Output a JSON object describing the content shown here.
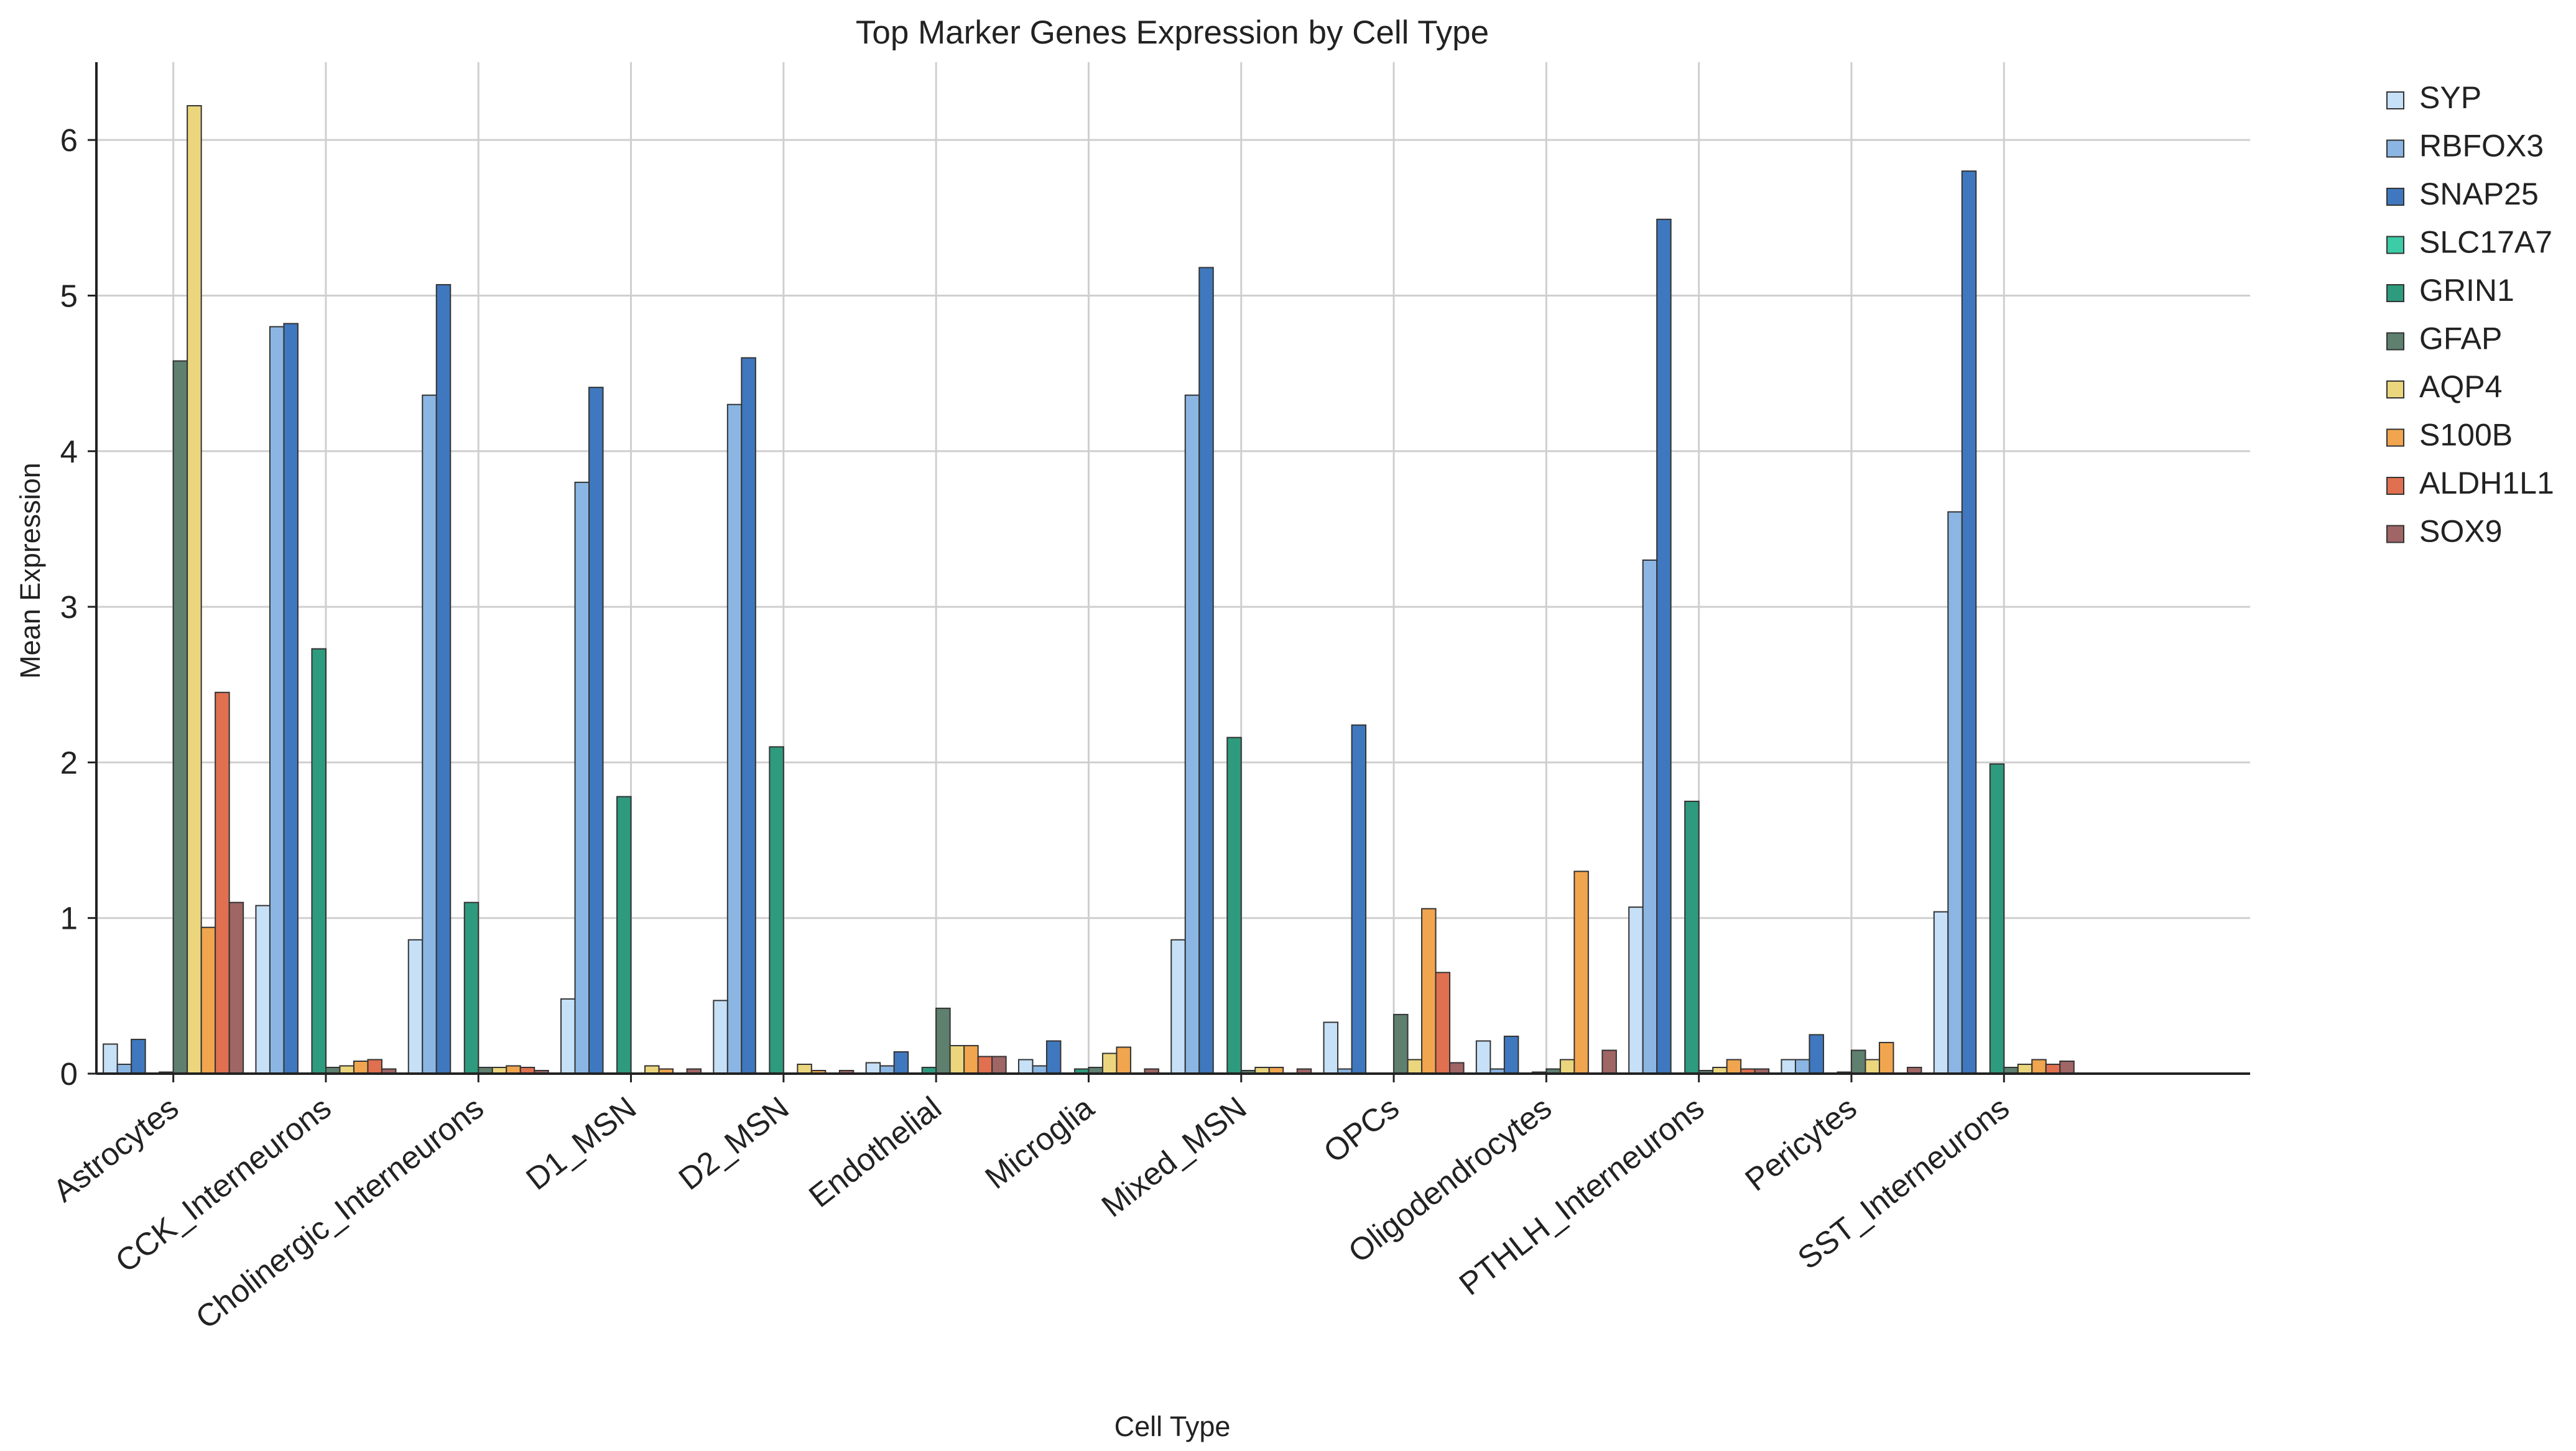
{
  "chart_data": {
    "type": "bar",
    "title": "Top Marker Genes Expression by Cell Type",
    "xlabel": "Cell Type",
    "ylabel": "Mean Expression",
    "ylim": [
      0,
      6.5
    ],
    "yticks": [
      0,
      1,
      2,
      3,
      4,
      5,
      6
    ],
    "grid": true,
    "legend_position": "outside-right-top",
    "categories": [
      "Astrocytes",
      "CCK_Interneurons",
      "Cholinergic_Interneurons",
      "D1_MSN",
      "D2_MSN",
      "Endothelial",
      "Microglia",
      "Mixed_MSN",
      "OPCs",
      "Oligodendrocytes",
      "PTHLH_Interneurons",
      "Pericytes",
      "SST_Interneurons"
    ],
    "series": [
      {
        "name": "SYP",
        "color": "#c6e0f7",
        "values": [
          0.19,
          1.08,
          0.86,
          0.48,
          0.47,
          0.07,
          0.09,
          0.86,
          0.33,
          0.21,
          1.07,
          0.09,
          1.04
        ]
      },
      {
        "name": "RBFOX3",
        "color": "#8bb6e3",
        "values": [
          0.06,
          4.8,
          4.36,
          3.8,
          4.3,
          0.05,
          0.05,
          4.36,
          0.03,
          0.03,
          3.3,
          0.09,
          3.61
        ]
      },
      {
        "name": "SNAP25",
        "color": "#3f78be",
        "values": [
          0.22,
          4.82,
          5.07,
          4.41,
          4.6,
          0.14,
          0.21,
          5.18,
          2.24,
          0.24,
          5.49,
          0.25,
          5.8
        ]
      },
      {
        "name": "SLC17A7",
        "color": "#3ccca6",
        "values": [
          0.0,
          0.0,
          0.0,
          0.0,
          0.0,
          0.0,
          0.0,
          0.0,
          0.0,
          0.0,
          0.0,
          0.0,
          0.0
        ]
      },
      {
        "name": "GRIN1",
        "color": "#2e9a7e",
        "values": [
          0.01,
          2.73,
          1.1,
          1.78,
          2.1,
          0.04,
          0.03,
          2.16,
          0.0,
          0.01,
          1.75,
          0.01,
          1.99
        ]
      },
      {
        "name": "GFAP",
        "color": "#5f7f6f",
        "values": [
          4.58,
          0.04,
          0.04,
          0.0,
          0.0,
          0.42,
          0.04,
          0.02,
          0.38,
          0.03,
          0.02,
          0.15,
          0.04
        ]
      },
      {
        "name": "AQP4",
        "color": "#ecd67d",
        "values": [
          6.22,
          0.05,
          0.04,
          0.05,
          0.06,
          0.18,
          0.13,
          0.04,
          0.09,
          0.09,
          0.04,
          0.09,
          0.06
        ]
      },
      {
        "name": "S100B",
        "color": "#f0a54e",
        "values": [
          0.94,
          0.08,
          0.05,
          0.03,
          0.02,
          0.18,
          0.17,
          0.04,
          1.06,
          1.3,
          0.09,
          0.2,
          0.09
        ]
      },
      {
        "name": "ALDH1L1",
        "color": "#e07050",
        "values": [
          2.45,
          0.09,
          0.04,
          0.0,
          0.0,
          0.11,
          0.0,
          0.0,
          0.65,
          0.0,
          0.03,
          0.0,
          0.06
        ]
      },
      {
        "name": "SOX9",
        "color": "#a06565",
        "values": [
          1.1,
          0.03,
          0.02,
          0.03,
          0.02,
          0.11,
          0.03,
          0.03,
          0.07,
          0.15,
          0.03,
          0.04,
          0.08
        ]
      }
    ]
  }
}
